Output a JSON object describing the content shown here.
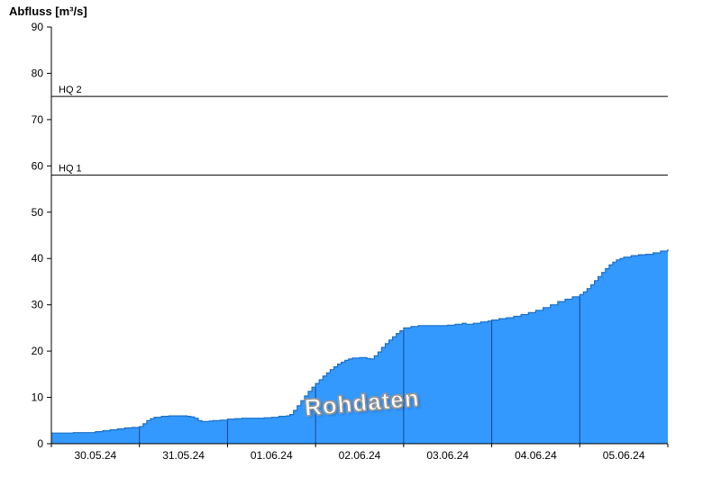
{
  "page": {
    "background": "#ffffff"
  },
  "chart_data": {
    "type": "area",
    "title": "Abfluss [m³/s]",
    "watermark": "Rohdaten",
    "x_unit": "hours since 30.05.24 00:00",
    "x_range_hours": [
      0,
      168
    ],
    "ylim": [
      0,
      90
    ],
    "y_ticks": [
      0,
      10,
      20,
      30,
      40,
      50,
      60,
      70,
      80,
      90
    ],
    "x_tick_labels": [
      "30.05.24",
      "31.05.24",
      "01.06.24",
      "02.06.24",
      "03.06.24",
      "04.06.24",
      "05.06.24"
    ],
    "x_tick_label_hours": [
      12,
      36,
      60,
      84,
      108,
      132,
      156
    ],
    "day_boundary_hours": [
      24,
      48,
      72,
      96,
      120,
      144
    ],
    "reference_lines": [
      {
        "label": "HQ 2",
        "value": 75
      },
      {
        "label": "HQ 1",
        "value": 58
      }
    ],
    "series": [
      {
        "name": "Abfluss",
        "points": [
          [
            0,
            2.3
          ],
          [
            3,
            2.3
          ],
          [
            6,
            2.4
          ],
          [
            9,
            2.4
          ],
          [
            12,
            2.6
          ],
          [
            14,
            2.8
          ],
          [
            16,
            3.0
          ],
          [
            18,
            3.2
          ],
          [
            20,
            3.4
          ],
          [
            22,
            3.5
          ],
          [
            24,
            3.7
          ],
          [
            25,
            4.3
          ],
          [
            26,
            5.0
          ],
          [
            27,
            5.4
          ],
          [
            28,
            5.7
          ],
          [
            30,
            5.9
          ],
          [
            32,
            6.0
          ],
          [
            35,
            6.0
          ],
          [
            37,
            5.9
          ],
          [
            38,
            5.8
          ],
          [
            39,
            5.5
          ],
          [
            40,
            5.0
          ],
          [
            41,
            4.8
          ],
          [
            43,
            4.9
          ],
          [
            44,
            5.0
          ],
          [
            46,
            5.1
          ],
          [
            48,
            5.3
          ],
          [
            50,
            5.4
          ],
          [
            52,
            5.5
          ],
          [
            55,
            5.5
          ],
          [
            58,
            5.6
          ],
          [
            60,
            5.7
          ],
          [
            62,
            5.9
          ],
          [
            64,
            6.0
          ],
          [
            65,
            6.3
          ],
          [
            66,
            7.2
          ],
          [
            67,
            8.2
          ],
          [
            68,
            9.3
          ],
          [
            69,
            10.3
          ],
          [
            70,
            11.3
          ],
          [
            71,
            12.2
          ],
          [
            72,
            13.0
          ],
          [
            73,
            13.8
          ],
          [
            74,
            14.6
          ],
          [
            75,
            15.3
          ],
          [
            76,
            16.0
          ],
          [
            77,
            16.6
          ],
          [
            78,
            17.2
          ],
          [
            79,
            17.6
          ],
          [
            80,
            18.0
          ],
          [
            81,
            18.3
          ],
          [
            82,
            18.5
          ],
          [
            84,
            18.6
          ],
          [
            86,
            18.4
          ],
          [
            87,
            18.3
          ],
          [
            88,
            19.0
          ],
          [
            89,
            19.8
          ],
          [
            90,
            20.8
          ],
          [
            91,
            21.6
          ],
          [
            92,
            22.4
          ],
          [
            93,
            23.1
          ],
          [
            94,
            23.8
          ],
          [
            95,
            24.4
          ],
          [
            96,
            25.0
          ],
          [
            98,
            25.3
          ],
          [
            100,
            25.5
          ],
          [
            104,
            25.5
          ],
          [
            108,
            25.6
          ],
          [
            110,
            25.8
          ],
          [
            112,
            26.0
          ],
          [
            113,
            25.8
          ],
          [
            115,
            26.0
          ],
          [
            117,
            26.3
          ],
          [
            119,
            26.5
          ],
          [
            120,
            26.7
          ],
          [
            122,
            27.0
          ],
          [
            124,
            27.2
          ],
          [
            126,
            27.5
          ],
          [
            128,
            27.9
          ],
          [
            130,
            28.3
          ],
          [
            132,
            28.8
          ],
          [
            134,
            29.4
          ],
          [
            136,
            30.0
          ],
          [
            138,
            30.7
          ],
          [
            140,
            31.2
          ],
          [
            142,
            31.7
          ],
          [
            144,
            32.2
          ],
          [
            145,
            32.8
          ],
          [
            146,
            33.5
          ],
          [
            147,
            34.3
          ],
          [
            148,
            35.2
          ],
          [
            149,
            36.1
          ],
          [
            150,
            37.0
          ],
          [
            151,
            37.8
          ],
          [
            152,
            38.6
          ],
          [
            153,
            39.2
          ],
          [
            154,
            39.7
          ],
          [
            155,
            40.0
          ],
          [
            156,
            40.3
          ],
          [
            158,
            40.6
          ],
          [
            160,
            40.8
          ],
          [
            162,
            40.9
          ],
          [
            164,
            41.2
          ],
          [
            166,
            41.6
          ],
          [
            168,
            42.0
          ]
        ]
      }
    ],
    "colors": {
      "area_fill": "#3399ff",
      "area_stroke": "#1a6fc4",
      "grid_vertical": "#1c4587",
      "reference_line": "#000000",
      "axis": "#000000",
      "tick_label": "#000000"
    }
  }
}
